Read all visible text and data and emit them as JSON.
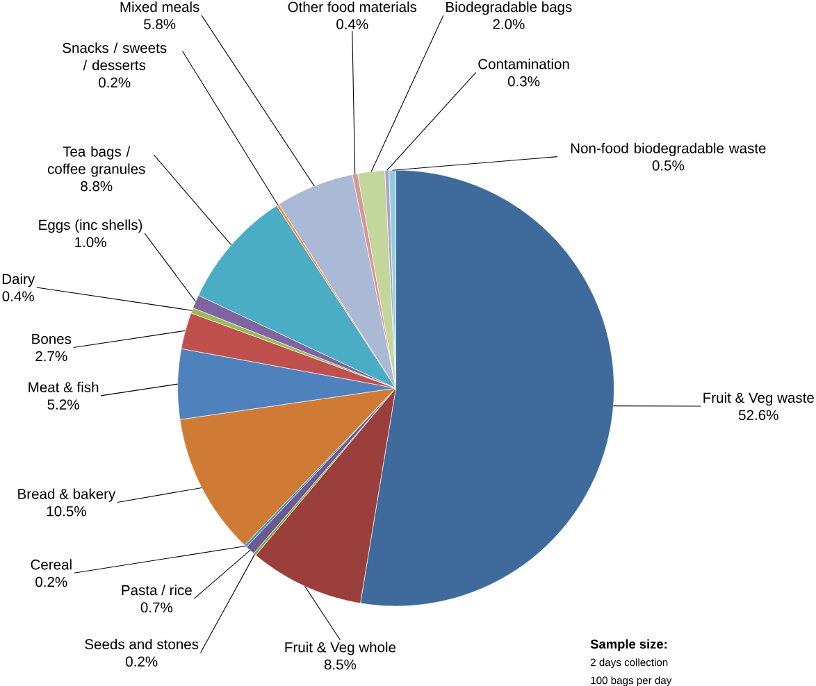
{
  "chart_data": {
    "type": "pie",
    "categories": [
      "Fruit & Veg waste",
      "Fruit & Veg whole",
      "Seeds and stones",
      "Pasta / rice",
      "Cereal",
      "Bread & bakery",
      "Meat & fish",
      "Bones",
      "Dairy",
      "Eggs (inc shells)",
      "Tea bags / coffee granules",
      "Snacks / sweets / desserts",
      "Mixed meals",
      "Other food materials",
      "Biodegradable bags",
      "Contamination",
      "Non-food biodegradable waste"
    ],
    "values": [
      52.6,
      8.5,
      0.2,
      0.7,
      0.2,
      10.5,
      5.2,
      2.7,
      0.4,
      1.0,
      8.8,
      0.2,
      5.8,
      0.4,
      2.0,
      0.3,
      0.5
    ],
    "value_labels": [
      "52.6%",
      "8.5%",
      "0.2%",
      "0.7%",
      "0.2%",
      "10.5%",
      "5.2%",
      "2.7%",
      "0.4%",
      "1.0%",
      "8.8%",
      "0.2%",
      "5.8%",
      "0.4%",
      "2.0%",
      "0.3%",
      "0.5%"
    ],
    "colors": [
      "#3e6a9c",
      "#9b3f3c",
      "#8ba84a",
      "#6e5a92",
      "#3f9bb5",
      "#d07b35",
      "#4f81bd",
      "#c0504d",
      "#9bbb59",
      "#8064a2",
      "#4bacc6",
      "#f79646",
      "#aab9d6",
      "#d99694",
      "#c3d69b",
      "#b3a2c7",
      "#93cddd"
    ],
    "annotations": [
      "Sample size:",
      "2 days collection",
      "100 bags per day"
    ]
  }
}
